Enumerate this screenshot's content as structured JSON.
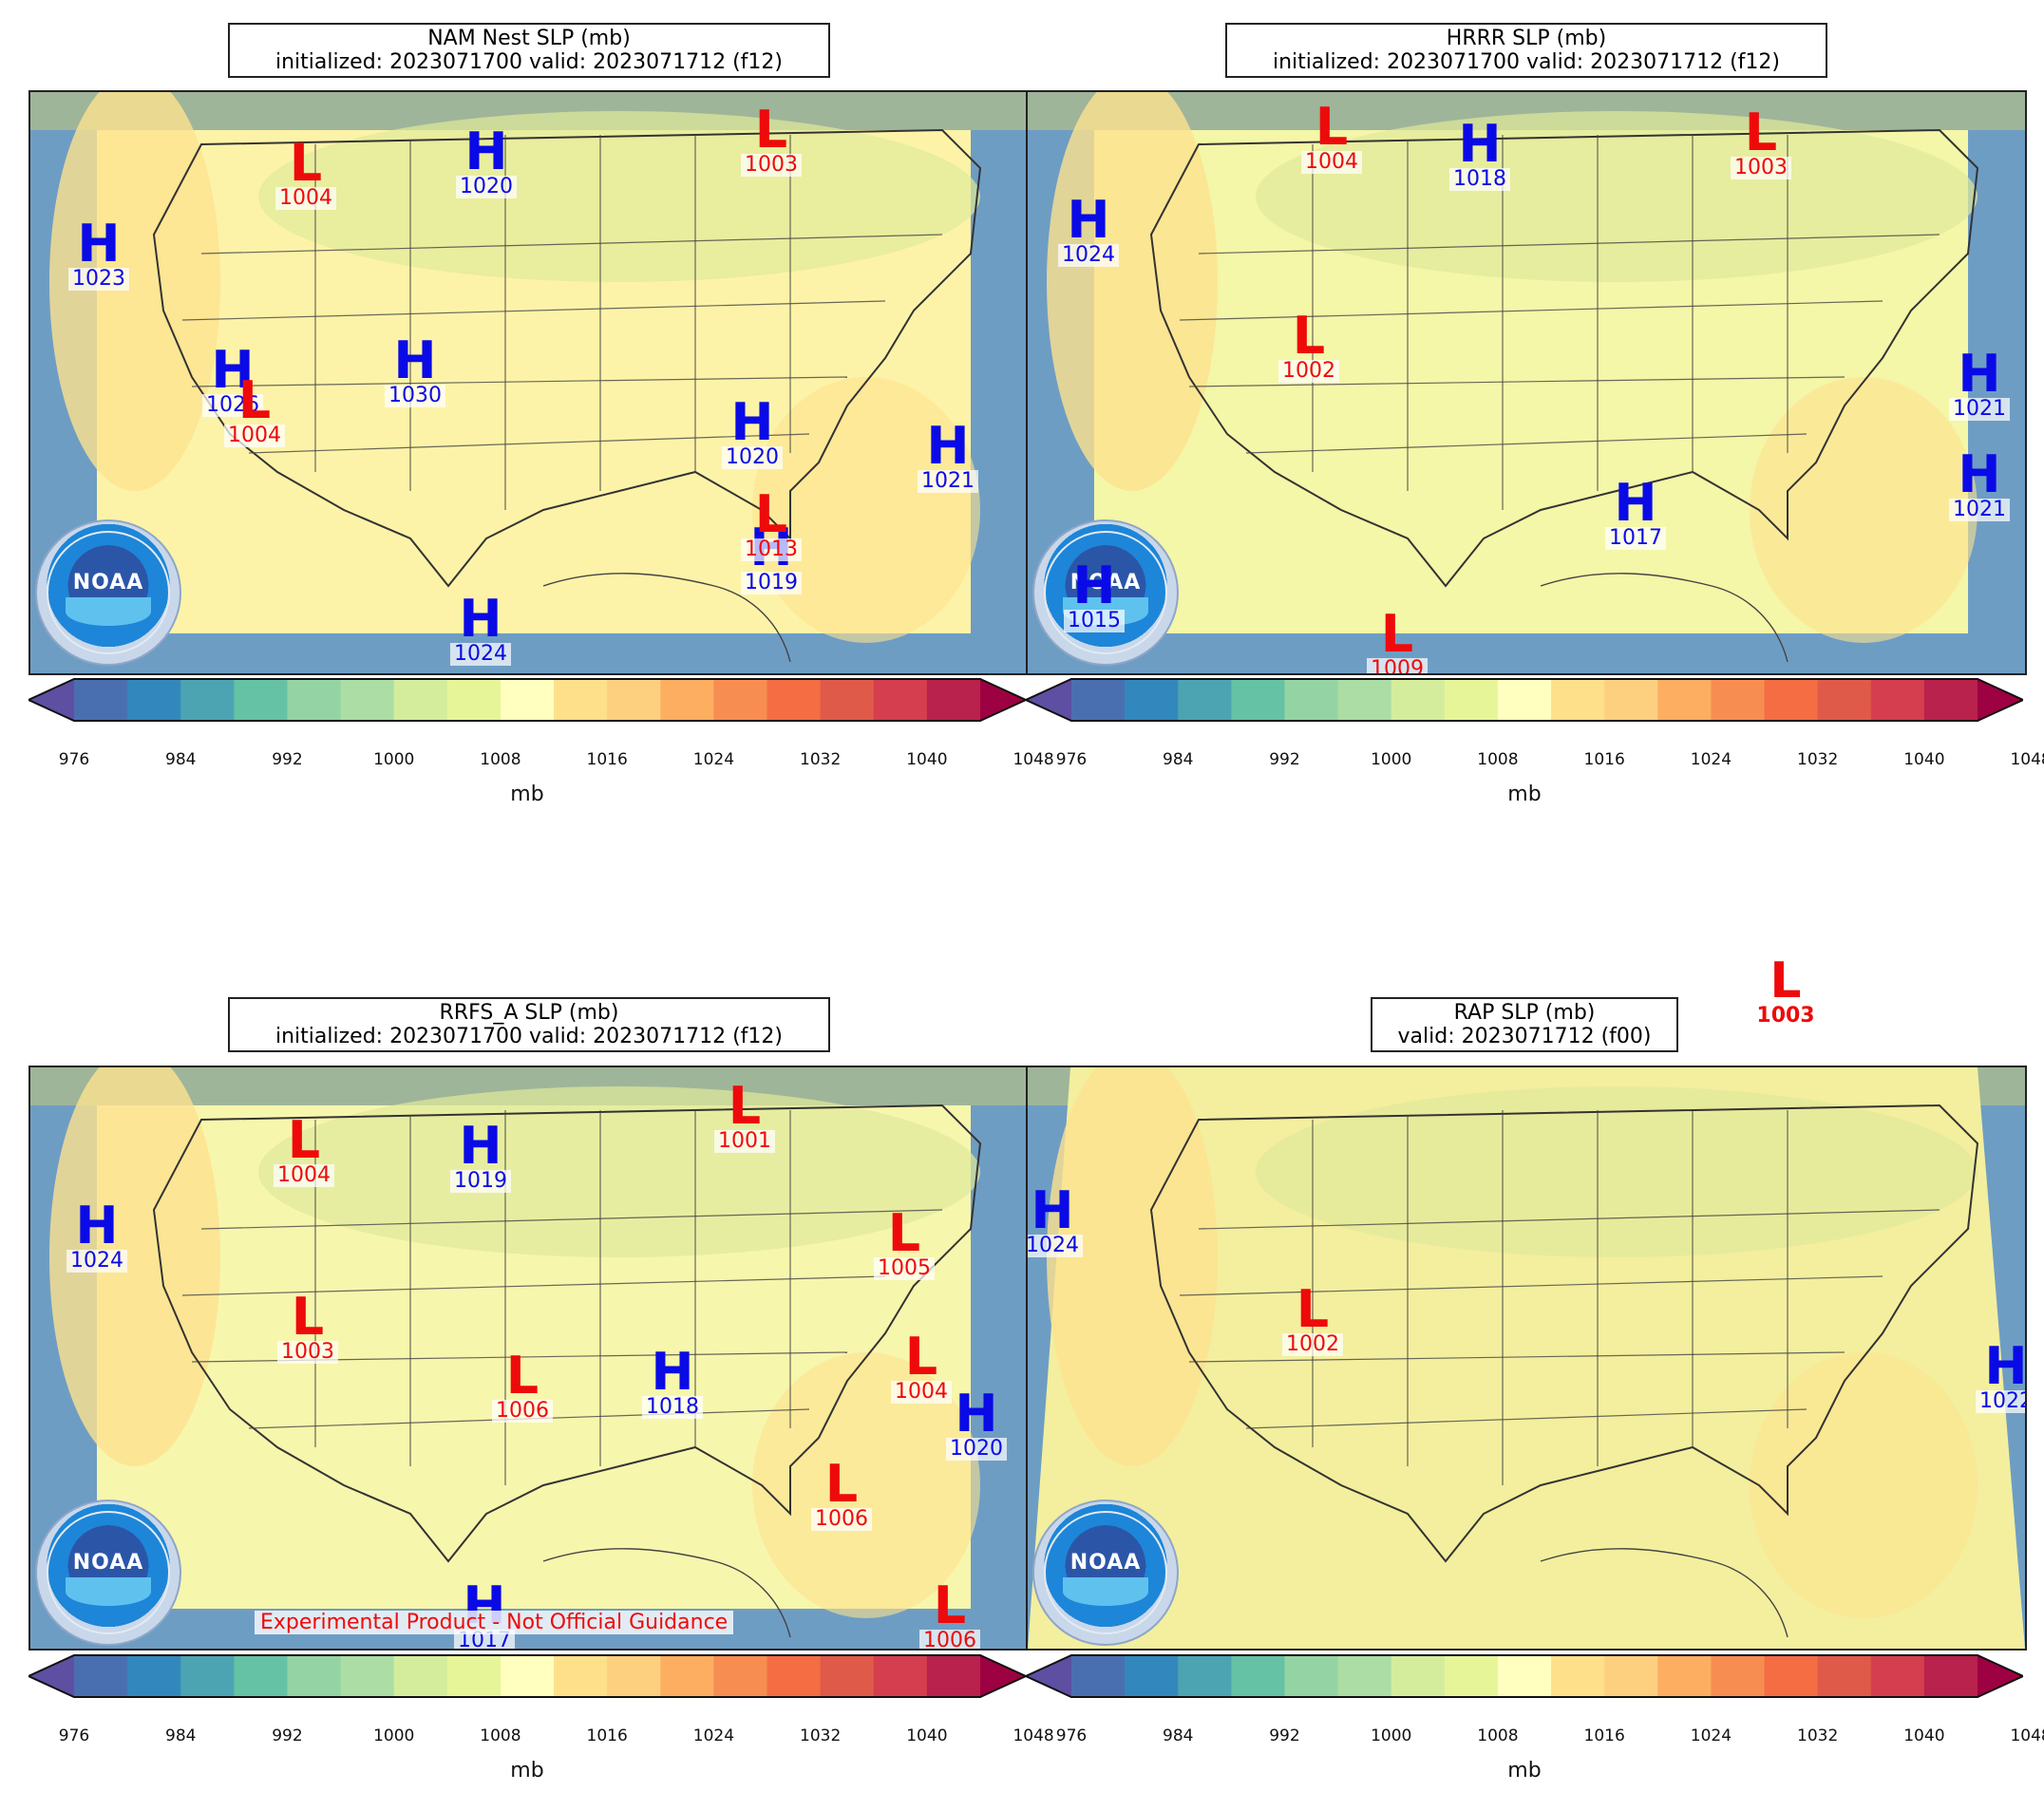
{
  "panels": [
    {
      "id": "nam",
      "title_line1": "NAM Nest SLP (mb)",
      "title_line2": "initialized: 2023071700 valid: 2023071712 (f12)",
      "highs": [
        "1020",
        "1023",
        "1026",
        "1030",
        "1020",
        "1021",
        "1019",
        "1024"
      ],
      "lows": [
        "1004",
        "1003",
        "1004",
        "1013"
      ]
    },
    {
      "id": "hrrr",
      "title_line1": "HRRR SLP (mb)",
      "title_line2": "initialized: 2023071700 valid: 2023071712 (f12)",
      "highs": [
        "1018",
        "1024",
        "1021",
        "1021",
        "1017",
        "1015"
      ],
      "lows": [
        "1004",
        "1003",
        "1002",
        "1009"
      ]
    },
    {
      "id": "rrfs",
      "title_line1": "RRFS_A SLP (mb)",
      "title_line2": "initialized: 2023071700 valid: 2023071712 (f12)",
      "highs": [
        "1019",
        "1024",
        "1018",
        "1020",
        "1017"
      ],
      "lows": [
        "1004",
        "1001",
        "1005",
        "1003",
        "1006",
        "1004",
        "1006",
        "1006"
      ],
      "footer": "Experimental Product - Not Official Guidance"
    },
    {
      "id": "rap",
      "title_line1": "RAP SLP (mb)",
      "title_line2": "valid: 2023071712 (f00)",
      "highs": [
        "1024",
        "1022"
      ],
      "lows": [
        "1002",
        "1003"
      ]
    }
  ],
  "colorbar": {
    "ticks": [
      "976",
      "984",
      "992",
      "1000",
      "1008",
      "1016",
      "1024",
      "1032",
      "1040",
      "1048"
    ],
    "label": "mb",
    "colors": [
      "#5e4fa2",
      "#4a6fb1",
      "#3288bd",
      "#4ca4b2",
      "#66c2a5",
      "#94d4a4",
      "#abdda4",
      "#d3ed9d",
      "#e6f598",
      "#ffffbf",
      "#fee08b",
      "#fdd080",
      "#fdae61",
      "#f88d52",
      "#f46d43",
      "#e05a4a",
      "#d53e4f",
      "#b8224c",
      "#9e0142"
    ]
  },
  "logo_text": "NOAA",
  "marker_letters": {
    "high": "H",
    "low": "L"
  }
}
